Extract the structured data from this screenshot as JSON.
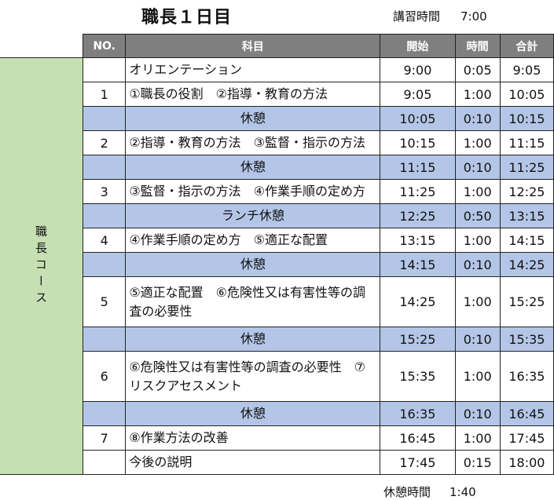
{
  "title": "職長１日目",
  "lecture_hours": {
    "label": "講習時間",
    "value": "7:00"
  },
  "table": {
    "side_label": "職長コース",
    "headers": [
      "NO.",
      "科目",
      "開始",
      "時間",
      "合計"
    ],
    "rows": [
      {
        "no": "",
        "subject": "オリエンテーション",
        "start": "9:00",
        "duration": "0:05",
        "end": "9:05",
        "break": false
      },
      {
        "no": "1",
        "subject": "①職長の役割　②指導・教育の方法",
        "start": "9:05",
        "duration": "1:00",
        "end": "10:05",
        "break": false
      },
      {
        "no": "",
        "subject": "休憩",
        "start": "10:05",
        "duration": "0:10",
        "end": "10:15",
        "break": true
      },
      {
        "no": "2",
        "subject": "②指導・教育の方法　③監督・指示の方法",
        "start": "10:15",
        "duration": "1:00",
        "end": "11:15",
        "break": false
      },
      {
        "no": "",
        "subject": "休憩",
        "start": "11:15",
        "duration": "0:10",
        "end": "11:25",
        "break": true
      },
      {
        "no": "3",
        "subject": "③監督・指示の方法　④作業手順の定め方",
        "start": "11:25",
        "duration": "1:00",
        "end": "12:25",
        "break": false
      },
      {
        "no": "",
        "subject": "ランチ休憩",
        "start": "12:25",
        "duration": "0:50",
        "end": "13:15",
        "break": true
      },
      {
        "no": "4",
        "subject": "④作業手順の定め方　⑤適正な配置",
        "start": "13:15",
        "duration": "1:00",
        "end": "14:15",
        "break": false
      },
      {
        "no": "",
        "subject": "休憩",
        "start": "14:15",
        "duration": "0:10",
        "end": "14:25",
        "break": true
      },
      {
        "no": "5",
        "subject": "⑤適正な配置　⑥危険性又は有害性等の調査の必要性",
        "start": "14:25",
        "duration": "1:00",
        "end": "15:25",
        "break": false,
        "tall": true
      },
      {
        "no": "",
        "subject": "休憩",
        "start": "15:25",
        "duration": "0:10",
        "end": "15:35",
        "break": true
      },
      {
        "no": "6",
        "subject": "⑥危険性又は有害性等の調査の必要性　⑦リスクアセスメント",
        "start": "15:35",
        "duration": "1:00",
        "end": "16:35",
        "break": false,
        "tall": true
      },
      {
        "no": "",
        "subject": "休憩",
        "start": "16:35",
        "duration": "0:10",
        "end": "16:45",
        "break": true
      },
      {
        "no": "7",
        "subject": "⑧作業方法の改善",
        "start": "16:45",
        "duration": "1:00",
        "end": "17:45",
        "break": false
      },
      {
        "no": "",
        "subject": "今後の説明",
        "start": "17:45",
        "duration": "0:15",
        "end": "18:00",
        "break": false
      }
    ]
  },
  "break_total": {
    "label": "休憩時間",
    "value": "1:40"
  },
  "colors": {
    "header": "#7f7f7f",
    "break": "#b4c6e7",
    "side": "#c6e0b4"
  }
}
